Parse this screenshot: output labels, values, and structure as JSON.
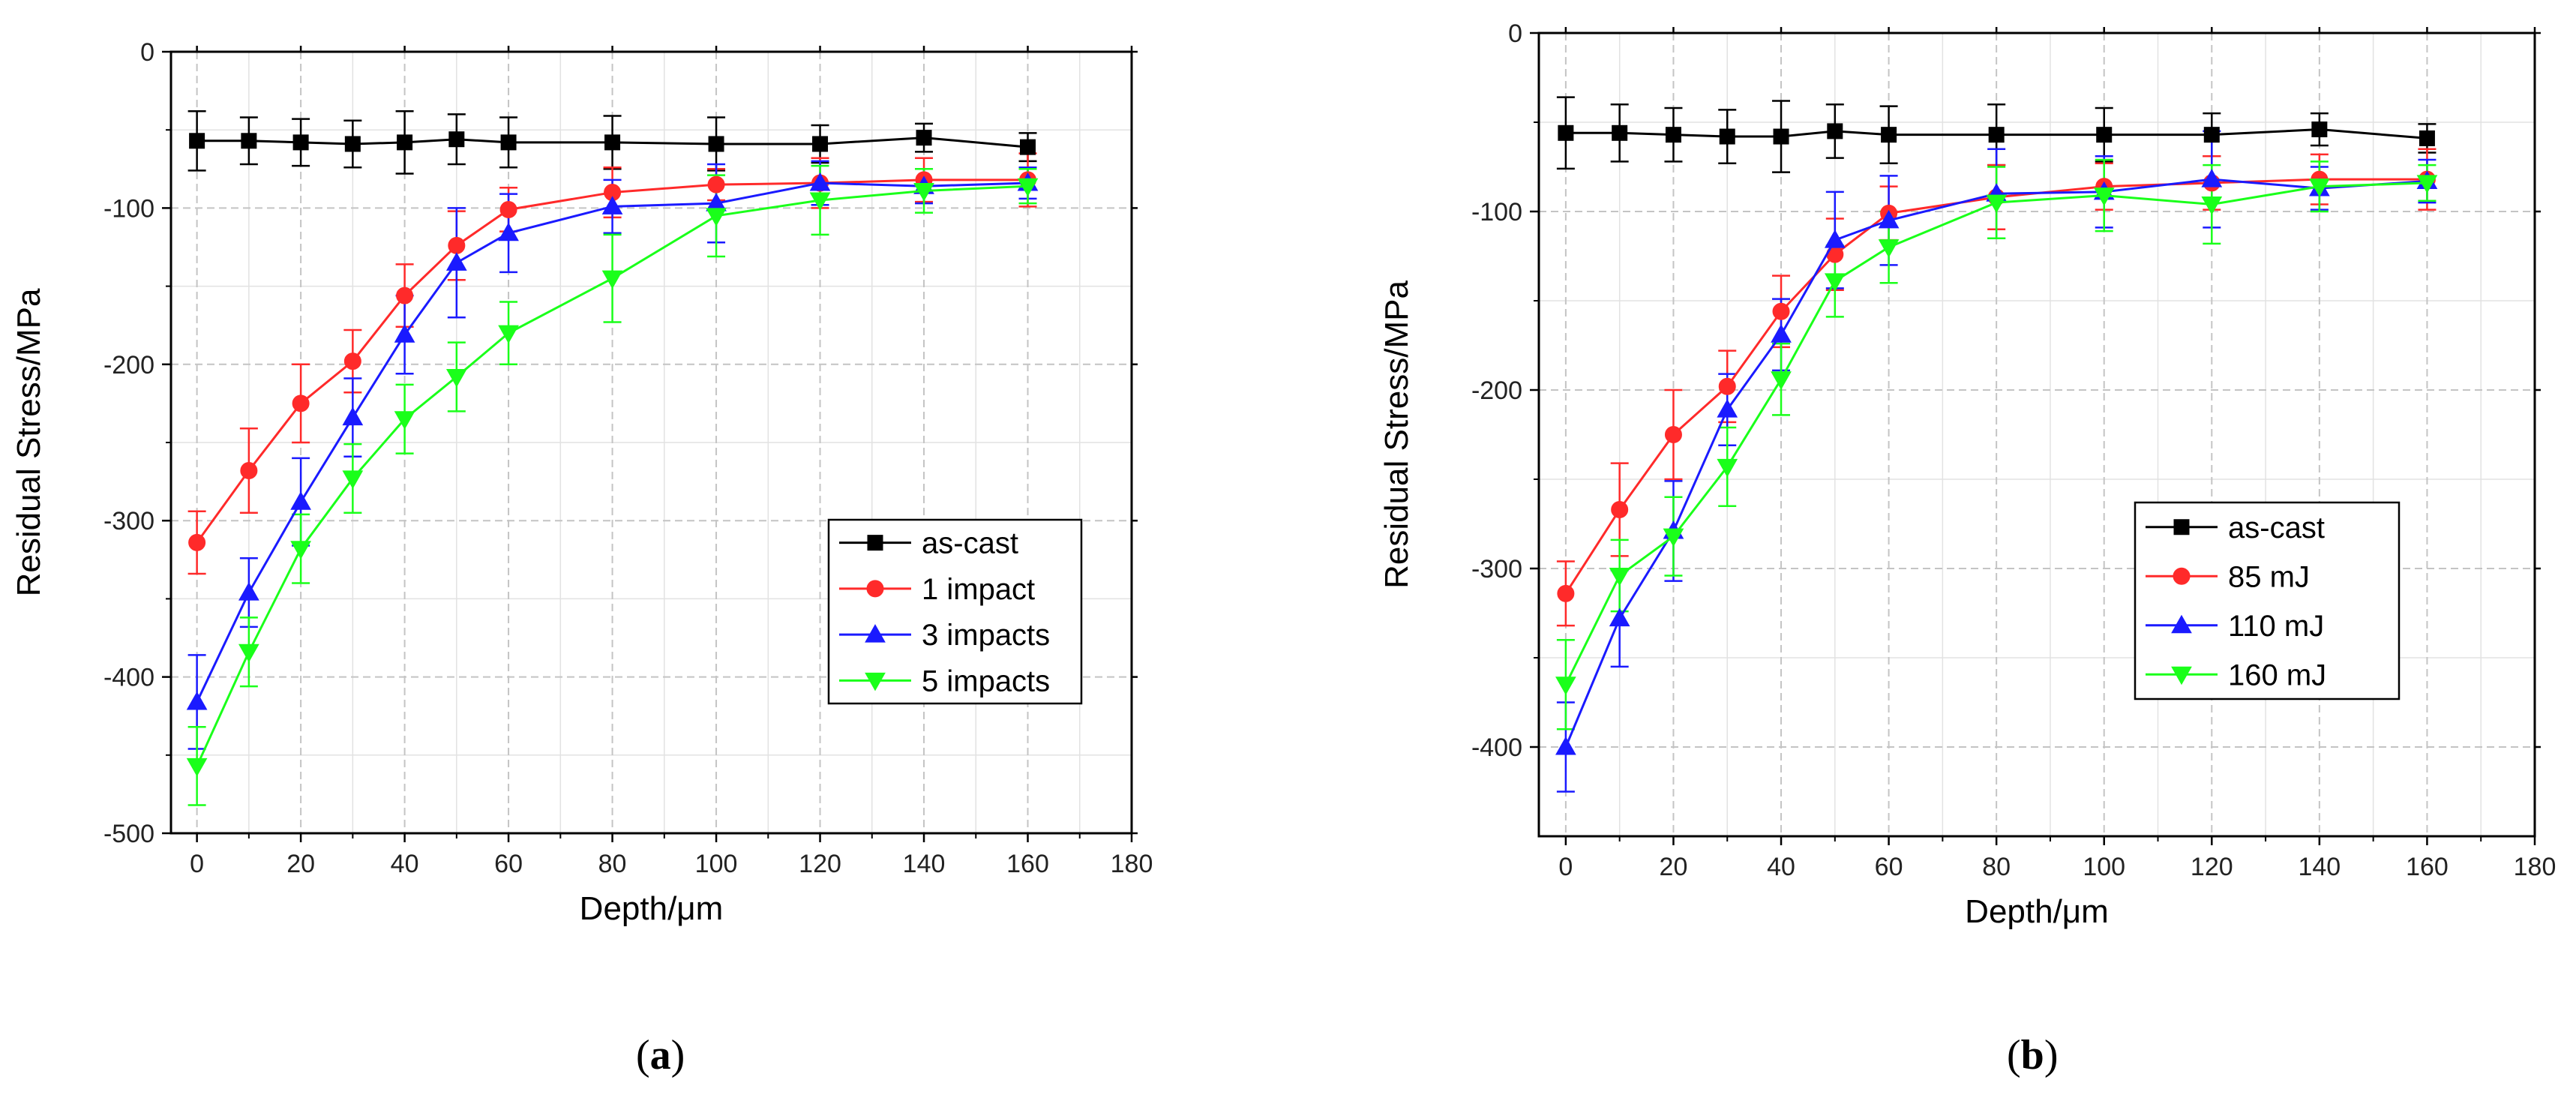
{
  "colors": {
    "as-cast": "#000000",
    "red": "#ff2a2a",
    "blue": "#1a1aff",
    "green": "#1aff1a"
  },
  "chart_data": [
    {
      "id": "a",
      "type": "line",
      "caption": "(a)",
      "caption_letter": "a",
      "xlabel": "Depth/μm",
      "ylabel": "Residual Stress/MPa",
      "xlim": [
        -5,
        180
      ],
      "ylim": [
        -500,
        0
      ],
      "xticks": [
        0,
        20,
        40,
        60,
        80,
        100,
        120,
        140,
        160,
        180
      ],
      "yticks": [
        0,
        -100,
        -200,
        -300,
        -400,
        -500
      ],
      "legend_position": "lower-right",
      "series": [
        {
          "name": "as-cast",
          "color": "#000000",
          "marker": "square",
          "x": [
            0,
            10,
            20,
            30,
            40,
            50,
            60,
            80,
            100,
            120,
            140,
            160
          ],
          "y": [
            -57,
            -57,
            -58,
            -59,
            -58,
            -56,
            -58,
            -58,
            -59,
            -59,
            -55,
            -61
          ],
          "err": [
            19,
            15,
            15,
            15,
            20,
            16,
            16,
            17,
            17,
            12,
            9,
            9
          ]
        },
        {
          "name": "1 impact",
          "color": "#ff2a2a",
          "marker": "circle",
          "x": [
            0,
            10,
            20,
            30,
            40,
            50,
            60,
            80,
            100,
            120,
            140,
            160
          ],
          "y": [
            -314,
            -268,
            -225,
            -198,
            -156,
            -124,
            -101,
            -90,
            -85,
            -84,
            -82,
            -82
          ],
          "err": [
            20,
            27,
            25,
            20,
            20,
            22,
            14,
            16,
            10,
            16,
            14,
            17
          ]
        },
        {
          "name": "3 impacts",
          "color": "#1a1aff",
          "marker": "triangle-up",
          "x": [
            0,
            10,
            20,
            30,
            40,
            50,
            60,
            80,
            100,
            120,
            140,
            160
          ],
          "y": [
            -416,
            -346,
            -288,
            -234,
            -181,
            -135,
            -116,
            -99,
            -97,
            -84,
            -86,
            -84
          ],
          "err": [
            30,
            22,
            28,
            25,
            25,
            35,
            25,
            17,
            25,
            14,
            11,
            10
          ]
        },
        {
          "name": "5 impacts",
          "color": "#1aff1a",
          "marker": "triangle-down",
          "x": [
            0,
            10,
            20,
            30,
            40,
            50,
            60,
            80,
            100,
            120,
            140,
            160
          ],
          "y": [
            -457,
            -384,
            -318,
            -273,
            -235,
            -208,
            -180,
            -145,
            -105,
            -95,
            -89,
            -86
          ],
          "err": [
            25,
            22,
            22,
            22,
            22,
            22,
            20,
            28,
            26,
            22,
            14,
            11
          ]
        }
      ]
    },
    {
      "id": "b",
      "type": "line",
      "caption": "(b)",
      "caption_letter": "b",
      "xlabel": "Depth/μm",
      "ylabel": "Residual Stress/MPa",
      "xlim": [
        -5,
        180
      ],
      "ylim": [
        -450,
        0
      ],
      "xticks": [
        0,
        20,
        40,
        60,
        80,
        100,
        120,
        140,
        160,
        180
      ],
      "yticks": [
        0,
        -100,
        -200,
        -300,
        -400
      ],
      "legend_position": "lower-right",
      "series": [
        {
          "name": "as-cast",
          "color": "#000000",
          "marker": "square",
          "x": [
            0,
            10,
            20,
            30,
            40,
            50,
            60,
            80,
            100,
            120,
            140,
            160
          ],
          "y": [
            -56,
            -56,
            -57,
            -58,
            -58,
            -55,
            -57,
            -57,
            -57,
            -57,
            -54,
            -59
          ],
          "err": [
            20,
            16,
            15,
            15,
            20,
            15,
            16,
            17,
            15,
            12,
            9,
            8
          ]
        },
        {
          "name": "85 mJ",
          "color": "#ff2a2a",
          "marker": "circle",
          "x": [
            0,
            10,
            20,
            30,
            40,
            50,
            60,
            80,
            100,
            120,
            140,
            160
          ],
          "y": [
            -314,
            -267,
            -225,
            -198,
            -156,
            -124,
            -101,
            -92,
            -86,
            -84,
            -82,
            -82
          ],
          "err": [
            18,
            26,
            25,
            20,
            20,
            20,
            15,
            18,
            13,
            15,
            14,
            17
          ]
        },
        {
          "name": "110 mJ",
          "color": "#1a1aff",
          "marker": "triangle-up",
          "x": [
            0,
            10,
            20,
            30,
            40,
            50,
            60,
            80,
            100,
            120,
            140,
            160
          ],
          "y": [
            -400,
            -328,
            -279,
            -211,
            -169,
            -116,
            -105,
            -90,
            -89,
            -82,
            -87,
            -83
          ],
          "err": [
            25,
            27,
            28,
            20,
            20,
            27,
            25,
            25,
            20,
            27,
            12,
            12
          ]
        },
        {
          "name": "160 mJ",
          "color": "#1aff1a",
          "marker": "triangle-down",
          "x": [
            0,
            10,
            20,
            30,
            40,
            50,
            60,
            80,
            100,
            120,
            140,
            160
          ],
          "y": [
            -365,
            -304,
            -282,
            -243,
            -194,
            -139,
            -120,
            -95,
            -91,
            -96,
            -86,
            -84
          ],
          "err": [
            25,
            20,
            22,
            22,
            20,
            20,
            20,
            20,
            20,
            22,
            14,
            10
          ]
        }
      ]
    }
  ]
}
